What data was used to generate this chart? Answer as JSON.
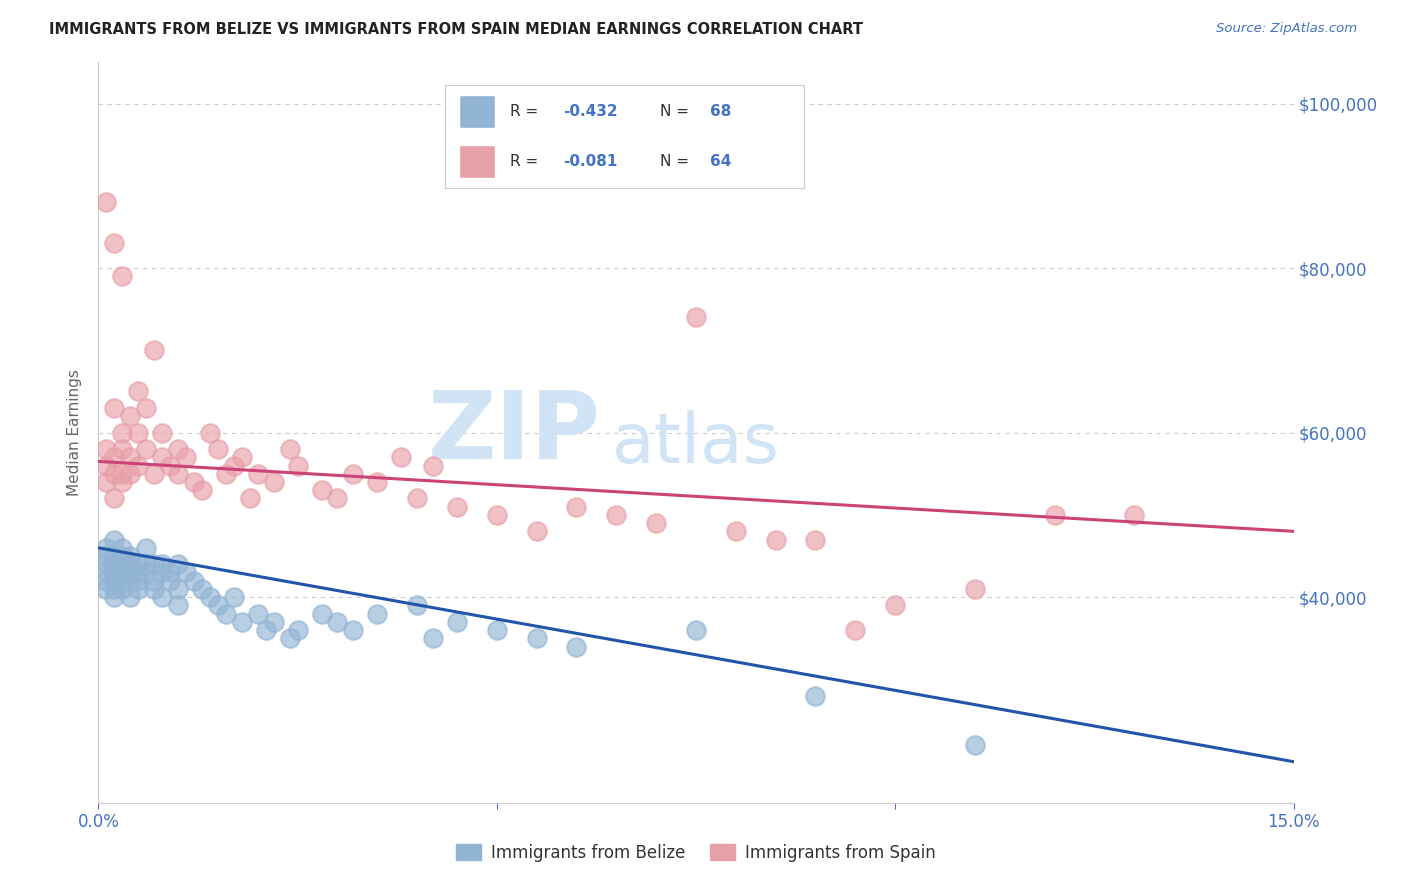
{
  "title": "IMMIGRANTS FROM BELIZE VS IMMIGRANTS FROM SPAIN MEDIAN EARNINGS CORRELATION CHART",
  "source": "Source: ZipAtlas.com",
  "ylabel": "Median Earnings",
  "xlim": [
    0.0,
    0.15
  ],
  "ylim": [
    15000,
    105000
  ],
  "ytick_labels": [
    "$100,000",
    "$80,000",
    "$60,000",
    "$40,000"
  ],
  "ytick_values": [
    100000,
    80000,
    60000,
    40000
  ],
  "watermark_zip": "ZIP",
  "watermark_atlas": "atlas",
  "belize_color": "#92b4d4",
  "spain_color": "#e8a0a8",
  "belize_line_color": "#2255aa",
  "spain_line_color": "#cc4477",
  "belize_R": "-0.432",
  "belize_N": "68",
  "spain_R": "-0.081",
  "spain_N": "64",
  "legend_label_belize": "Immigrants from Belize",
  "legend_label_spain": "Immigrants from Spain",
  "background_color": "#ffffff",
  "grid_color": "#cccccc",
  "label_color": "#4472c4",
  "belize_x": [
    0.001,
    0.001,
    0.001,
    0.001,
    0.001,
    0.001,
    0.002,
    0.002,
    0.002,
    0.002,
    0.002,
    0.002,
    0.002,
    0.003,
    0.003,
    0.003,
    0.003,
    0.003,
    0.003,
    0.004,
    0.004,
    0.004,
    0.004,
    0.004,
    0.005,
    0.005,
    0.005,
    0.005,
    0.006,
    0.006,
    0.006,
    0.007,
    0.007,
    0.007,
    0.008,
    0.008,
    0.008,
    0.009,
    0.009,
    0.01,
    0.01,
    0.01,
    0.011,
    0.012,
    0.013,
    0.014,
    0.015,
    0.016,
    0.017,
    0.018,
    0.02,
    0.021,
    0.022,
    0.024,
    0.025,
    0.028,
    0.03,
    0.032,
    0.035,
    0.04,
    0.042,
    0.045,
    0.05,
    0.055,
    0.06,
    0.075,
    0.09,
    0.11
  ],
  "belize_y": [
    44000,
    42000,
    46000,
    41000,
    43000,
    45000,
    43000,
    41000,
    45000,
    44000,
    47000,
    42000,
    40000,
    46000,
    44000,
    42000,
    43000,
    45000,
    41000,
    43000,
    44000,
    42000,
    40000,
    45000,
    43000,
    41000,
    44000,
    42000,
    44000,
    43000,
    46000,
    42000,
    44000,
    41000,
    43000,
    40000,
    44000,
    42000,
    43000,
    44000,
    41000,
    39000,
    43000,
    42000,
    41000,
    40000,
    39000,
    38000,
    40000,
    37000,
    38000,
    36000,
    37000,
    35000,
    36000,
    38000,
    37000,
    36000,
    38000,
    39000,
    35000,
    37000,
    36000,
    35000,
    34000,
    36000,
    28000,
    22000
  ],
  "spain_x": [
    0.001,
    0.001,
    0.001,
    0.002,
    0.002,
    0.002,
    0.002,
    0.003,
    0.003,
    0.003,
    0.003,
    0.004,
    0.004,
    0.004,
    0.005,
    0.005,
    0.005,
    0.006,
    0.006,
    0.007,
    0.007,
    0.008,
    0.008,
    0.009,
    0.01,
    0.01,
    0.011,
    0.012,
    0.013,
    0.014,
    0.015,
    0.016,
    0.017,
    0.018,
    0.019,
    0.02,
    0.022,
    0.024,
    0.025,
    0.028,
    0.03,
    0.032,
    0.035,
    0.038,
    0.04,
    0.042,
    0.045,
    0.05,
    0.055,
    0.06,
    0.065,
    0.07,
    0.075,
    0.08,
    0.085,
    0.09,
    0.095,
    0.1,
    0.11,
    0.12,
    0.001,
    0.002,
    0.003,
    0.13
  ],
  "spain_y": [
    56000,
    54000,
    58000,
    55000,
    57000,
    63000,
    52000,
    60000,
    55000,
    58000,
    54000,
    62000,
    57000,
    55000,
    65000,
    60000,
    56000,
    63000,
    58000,
    70000,
    55000,
    60000,
    57000,
    56000,
    55000,
    58000,
    57000,
    54000,
    53000,
    60000,
    58000,
    55000,
    56000,
    57000,
    52000,
    55000,
    54000,
    58000,
    56000,
    53000,
    52000,
    55000,
    54000,
    57000,
    52000,
    56000,
    51000,
    50000,
    48000,
    51000,
    50000,
    49000,
    74000,
    48000,
    47000,
    47000,
    36000,
    39000,
    41000,
    50000,
    88000,
    83000,
    79000,
    50000
  ]
}
